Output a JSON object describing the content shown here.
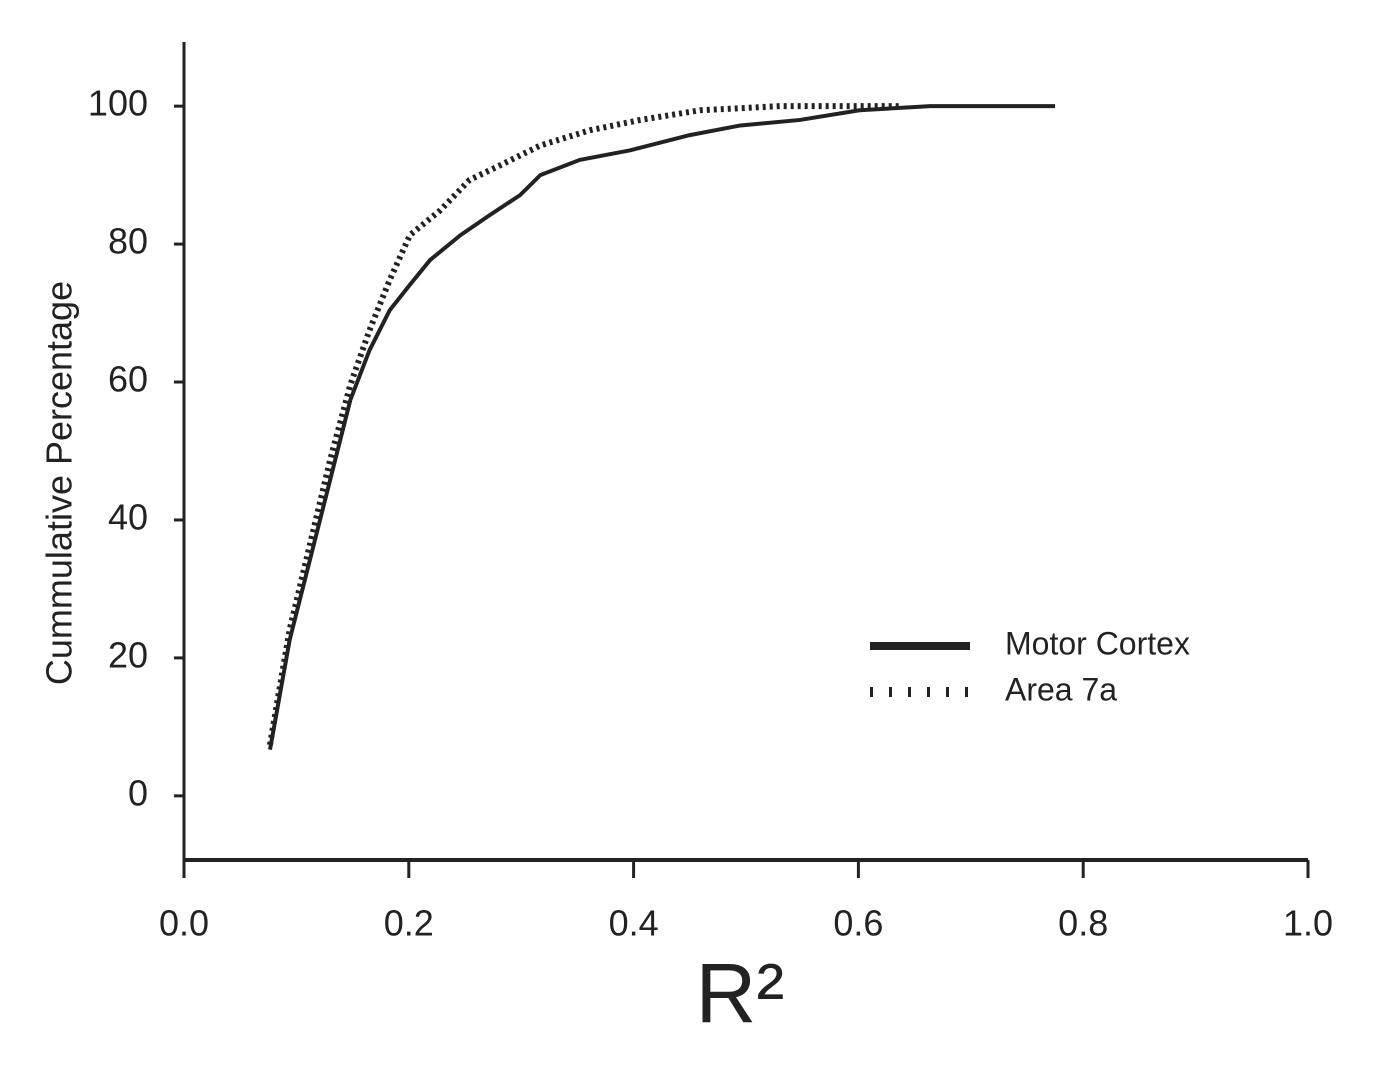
{
  "chart_data": {
    "type": "line",
    "x_label": "R²",
    "y_label": "Cummulative Percentage",
    "xlim": [
      0,
      1
    ],
    "ylim": [
      -9.3,
      109.3
    ],
    "xticks": [
      {
        "value": 0,
        "label": "0.0"
      },
      0.2,
      0.4,
      0.6,
      0.8,
      {
        "value": 1,
        "label": "1.0"
      }
    ],
    "yticks": [
      0,
      20,
      40,
      60,
      80,
      100
    ],
    "legend": "lower right",
    "series": [
      {
        "name": "Motor Cortex",
        "color": "#222222",
        "dash": "solid",
        "x": [
          0.0765,
          0.094,
          0.112,
          0.13,
          0.148,
          0.165,
          0.183,
          0.201,
          0.219,
          0.246,
          0.272,
          0.299,
          0.317,
          0.352,
          0.397,
          0.45,
          0.495,
          0.548,
          0.601,
          0.664,
          0.775
        ],
        "values": [
          6.7,
          22.6,
          34.2,
          45.8,
          57.4,
          64.6,
          70.4,
          74.1,
          77.7,
          81.3,
          84.2,
          87.1,
          90.0,
          92.2,
          93.6,
          95.8,
          97.2,
          98.0,
          99.4,
          100,
          100
        ]
      },
      {
        "name": "Area 7a",
        "color": "#222222",
        "dash": "dotted",
        "x": [
          0.0765,
          0.094,
          0.112,
          0.13,
          0.148,
          0.165,
          0.183,
          0.201,
          0.228,
          0.254,
          0.281,
          0.317,
          0.361,
          0.406,
          0.459,
          0.53,
          0.637
        ],
        "values": [
          7.4,
          24.1,
          36.4,
          48.7,
          59.6,
          67.5,
          74.8,
          81.3,
          84.9,
          89.3,
          91.4,
          94.3,
          96.5,
          98.0,
          99.4,
          100,
          100
        ]
      }
    ]
  }
}
